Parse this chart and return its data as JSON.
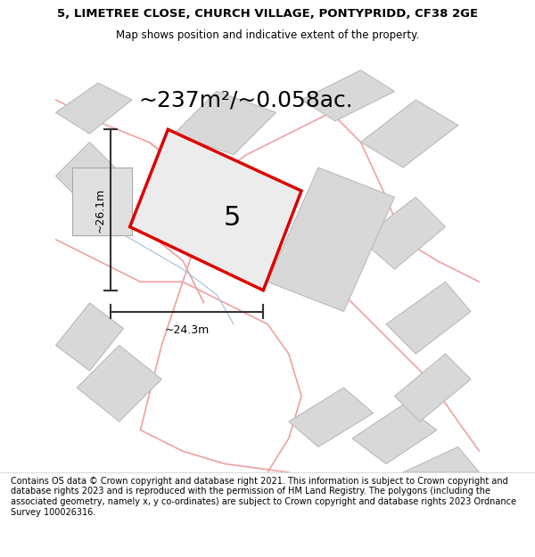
{
  "title_line1": "5, LIMETREE CLOSE, CHURCH VILLAGE, PONTYPRIDD, CF38 2GE",
  "title_line2": "Map shows position and indicative extent of the property.",
  "area_text": "~237m²/~0.058ac.",
  "plot_label": "5",
  "dim_height": "~26.1m",
  "dim_width": "~24.3m",
  "footer": "Contains OS data © Crown copyright and database right 2021. This information is subject to Crown copyright and database rights 2023 and is reproduced with the permission of HM Land Registry. The polygons (including the associated geometry, namely x, y co-ordinates) are subject to Crown copyright and database rights 2023 Ordnance Survey 100026316.",
  "bg_color": "#f5f5f5",
  "map_bg": "#ffffff",
  "plot_fill": "#e8e8e8",
  "plot_edge": "#dd0000",
  "other_fill": "#d8d8d8",
  "other_edge": "#bbbbbb",
  "road_color": "#f0a0a0",
  "dim_color": "#333333",
  "title_fontsize": 9.5,
  "subtitle_fontsize": 8.5,
  "area_fontsize": 18,
  "plot_label_fontsize": 22,
  "dim_fontsize": 9,
  "footer_fontsize": 7
}
